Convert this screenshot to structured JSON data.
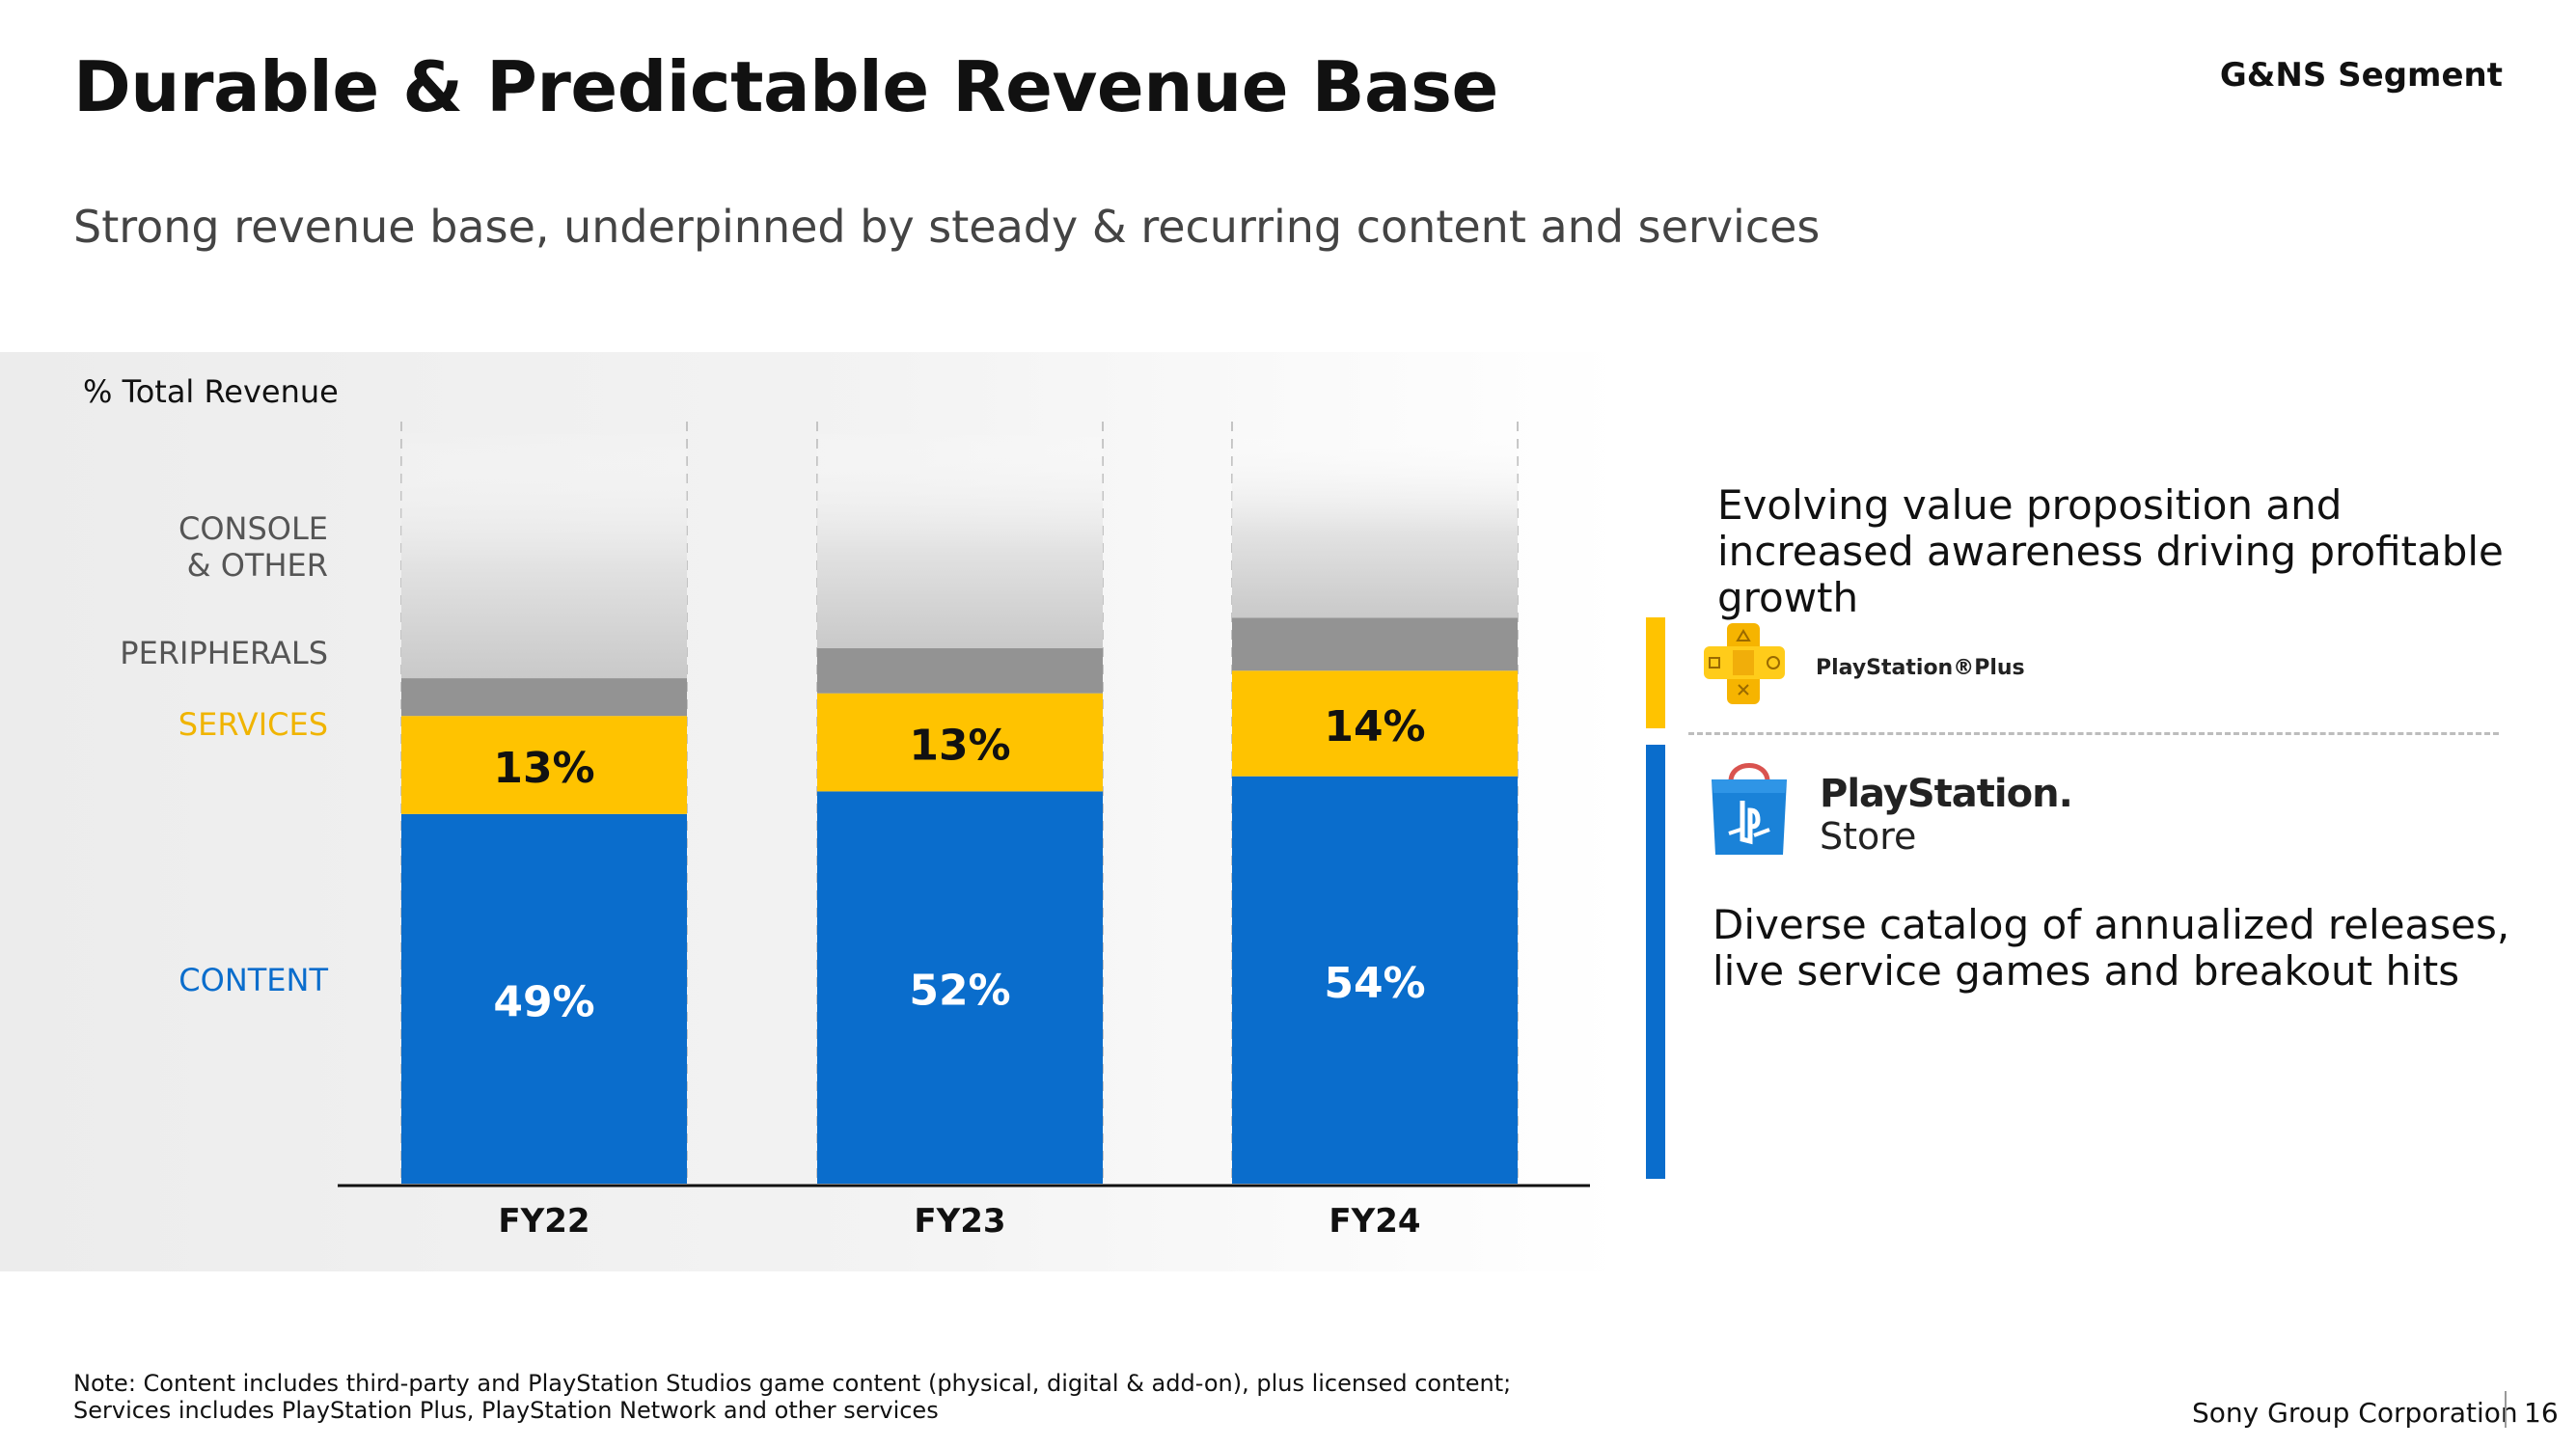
{
  "header": {
    "title": "Durable & Predictable Revenue Base",
    "segment": "G&NS Segment",
    "subtitle": "Strong revenue base, underpinned by steady & recurring content and services"
  },
  "chart_data": {
    "type": "bar",
    "stacked": true,
    "ylabel": "% Total Revenue",
    "categories": [
      "FY22",
      "FY23",
      "FY24"
    ],
    "ylim": [
      0,
      100
    ],
    "series": [
      {
        "name": "CONTENT",
        "values": [
          49,
          52,
          54
        ],
        "labels": [
          "49%",
          "52%",
          "54%"
        ],
        "color": "#0a6dcc"
      },
      {
        "name": "SERVICES",
        "values": [
          13,
          13,
          14
        ],
        "labels": [
          "13%",
          "13%",
          "14%"
        ],
        "color": "#ffc300"
      },
      {
        "name": "PERIPHERALS",
        "values": [
          5,
          6,
          7
        ],
        "color": "#939393"
      },
      {
        "name": "CONSOLE & OTHER",
        "values": [
          33,
          29,
          25
        ],
        "color": "#dcdcdc"
      }
    ],
    "legend_colors": {
      "CONTENT": "#0a6dcc",
      "SERVICES": "#f0b400",
      "PERIPHERALS": "#555555",
      "CONSOLE & OTHER": "#555555"
    }
  },
  "right_panel": {
    "top_text": "Evolving value proposition and increased awareness driving profitable growth",
    "plus_label": "PlayStation®Plus",
    "plus_icon": "playstation-plus-logo-icon",
    "store_label_1": "PlayStation.",
    "store_label_2": "Store",
    "store_icon": "playstation-store-bag-icon",
    "bottom_text": "Diverse catalog of annualized releases, live service games and breakout hits",
    "services_bar_color": "#ffc300",
    "content_bar_color": "#0a6dcc"
  },
  "footer": {
    "note_1": "Note: Content includes third-party and PlayStation Studios game content (physical, digital & add-on), plus licensed content;",
    "note_2": "Services includes PlayStation Plus, PlayStation Network and other services",
    "company": "Sony Group Corporation",
    "page": "16"
  }
}
